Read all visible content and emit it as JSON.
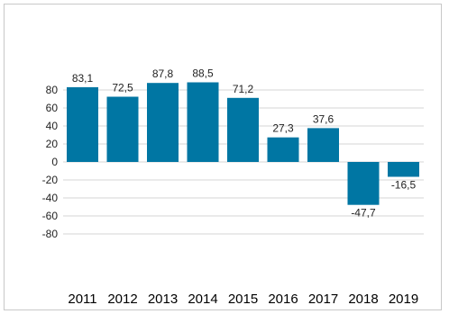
{
  "chart_data": {
    "type": "bar",
    "categories": [
      "2011",
      "2012",
      "2013",
      "2014",
      "2015",
      "2016",
      "2017",
      "2018",
      "2019"
    ],
    "values": [
      83.1,
      72.5,
      87.8,
      88.5,
      71.2,
      27.3,
      37.6,
      -47.7,
      -16.5
    ],
    "value_labels": [
      "83,1",
      "72,5",
      "87,8",
      "88,5",
      "71,2",
      "27,3",
      "37,6",
      "-47,7",
      "-16,5"
    ],
    "yticks": [
      80,
      60,
      40,
      20,
      0,
      -20,
      -40,
      -60,
      -80
    ],
    "ytick_labels": [
      "80",
      "60",
      "40",
      "20",
      "0",
      "-20",
      "-40",
      "-60",
      "-80"
    ],
    "ylim": [
      -80,
      80
    ],
    "grid": true,
    "bar_color": "#0076a3",
    "grid_color": "#d4d4d4",
    "title": "",
    "xlabel": "",
    "ylabel": ""
  }
}
